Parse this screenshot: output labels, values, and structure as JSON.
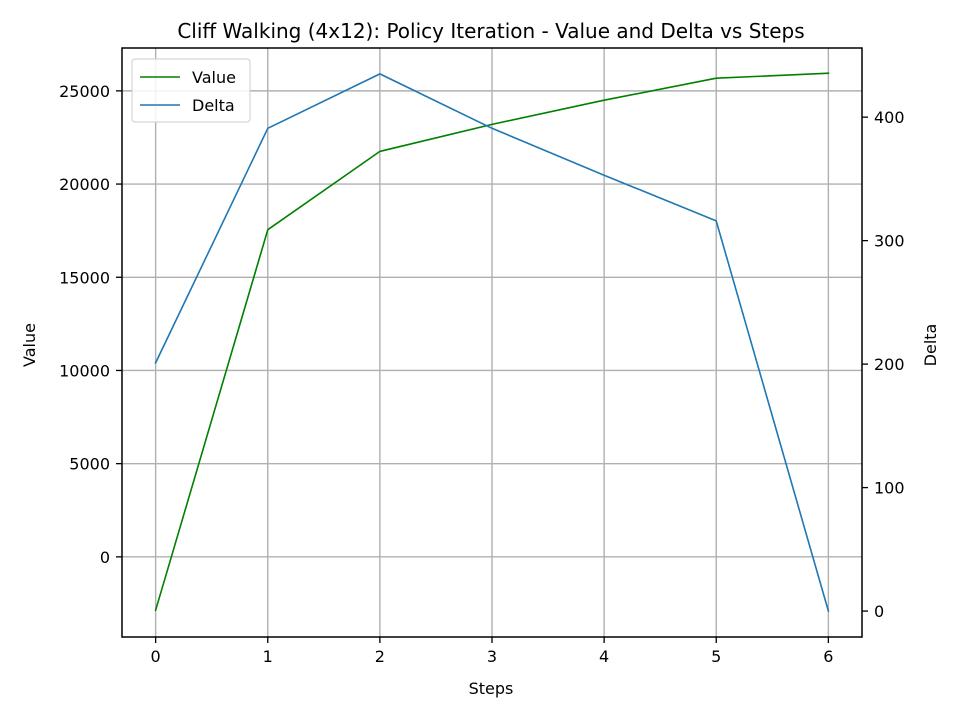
{
  "chart_data": {
    "type": "line",
    "title": "Cliff Walking (4x12): Policy Iteration - Value and Delta vs Steps",
    "xlabel": "Steps",
    "ylabel_left": "Value",
    "ylabel_right": "Delta",
    "x": [
      0,
      1,
      2,
      3,
      4,
      5,
      6
    ],
    "x_ticks": [
      0,
      1,
      2,
      3,
      4,
      5,
      6
    ],
    "xlim": [
      -0.3,
      6.3
    ],
    "ylim_left": [
      -4300,
      27300
    ],
    "ylim_right": [
      -21,
      456
    ],
    "y_ticks_left": [
      0,
      5000,
      10000,
      15000,
      20000,
      25000
    ],
    "y_ticks_right": [
      0,
      100,
      200,
      300,
      400
    ],
    "grid": true,
    "legend_position": "top-left",
    "series": [
      {
        "name": "Value",
        "axis": "left",
        "color": "#008000",
        "values": [
          -2870,
          17550,
          21750,
          23200,
          24500,
          25680,
          25950
        ]
      },
      {
        "name": "Delta",
        "axis": "right",
        "color": "#1f77b4",
        "values": [
          201,
          391,
          435,
          391,
          353,
          316,
          0
        ]
      }
    ]
  }
}
